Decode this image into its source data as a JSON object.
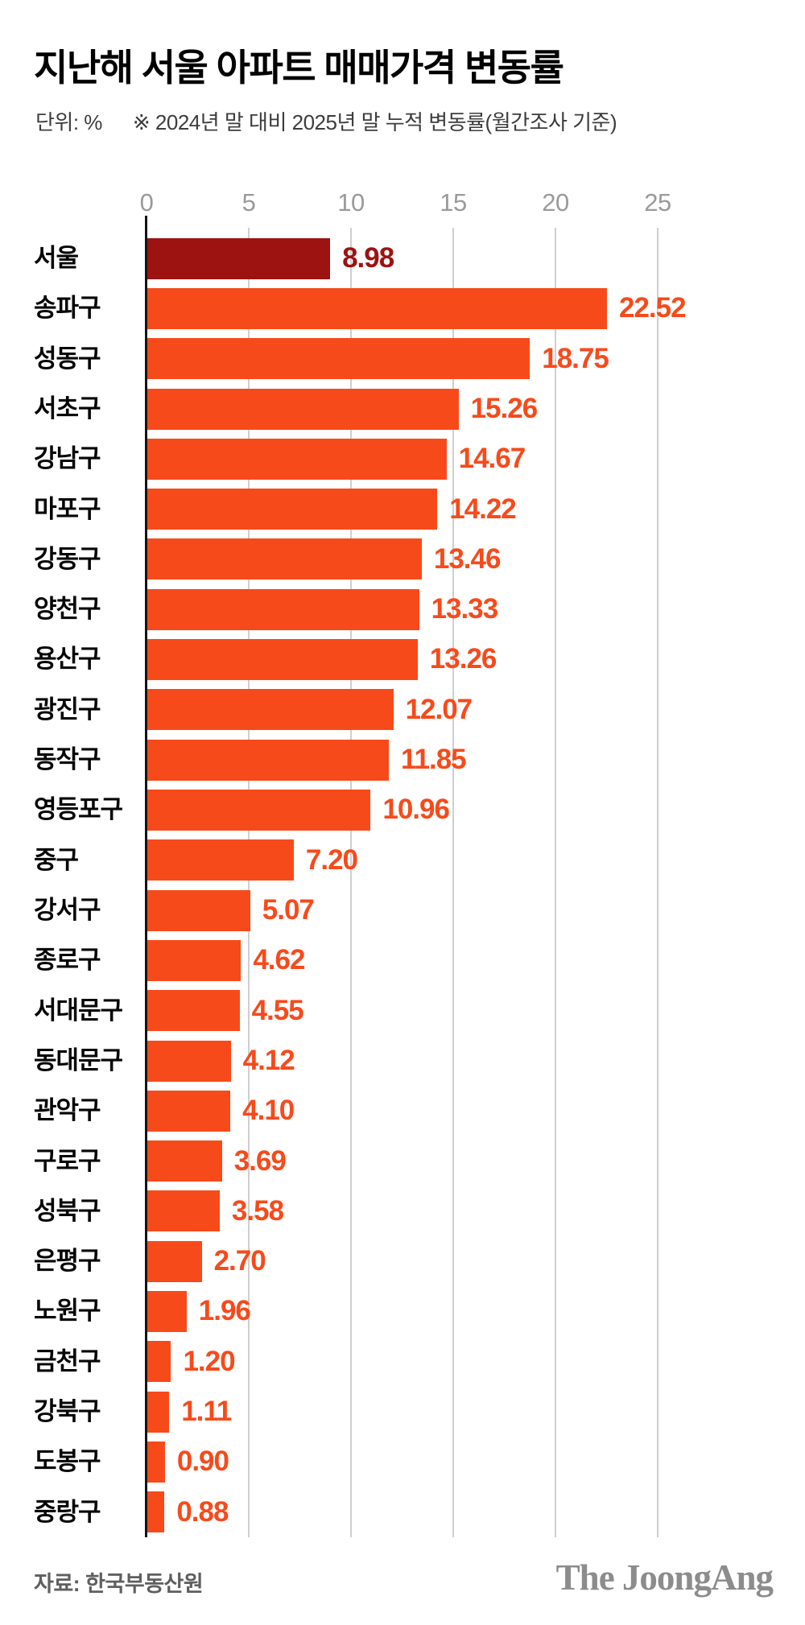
{
  "title": "지난해 서울 아파트 매매가격 변동률",
  "subtitle": {
    "unit_label": "단위: %",
    "note": "※ 2024년 말 대비 2025년 말 누적 변동률(월간조사 기준)"
  },
  "footer": {
    "source": "자료: 한국부동산원",
    "logo": "The JoongAng"
  },
  "colors": {
    "seoul_bar": "#9c1311",
    "seoul_value": "#9c1311",
    "district_bar": "#f74a1b",
    "district_value": "#f74a1b",
    "axis_label": "#9a9a9a",
    "gridline": "#cfcfcf",
    "axis_line": "#141414"
  },
  "chart_data": {
    "type": "bar",
    "orientation": "horizontal",
    "title": "지난해 서울 아파트 매매가격 변동률",
    "unit": "%",
    "xlabel": "",
    "ylabel": "",
    "xlim": [
      0,
      25
    ],
    "x_ticks": [
      0,
      5,
      10,
      15,
      20,
      25
    ],
    "grid": true,
    "highlight_category": "서울",
    "categories": [
      "서울",
      "송파구",
      "성동구",
      "서초구",
      "강남구",
      "마포구",
      "강동구",
      "양천구",
      "용산구",
      "광진구",
      "동작구",
      "영등포구",
      "중구",
      "강서구",
      "종로구",
      "서대문구",
      "동대문구",
      "관악구",
      "구로구",
      "성북구",
      "은평구",
      "노원구",
      "금천구",
      "강북구",
      "도봉구",
      "중랑구"
    ],
    "values": [
      8.98,
      22.52,
      18.75,
      15.26,
      14.67,
      14.22,
      13.46,
      13.33,
      13.26,
      12.07,
      11.85,
      10.96,
      7.2,
      5.07,
      4.62,
      4.55,
      4.12,
      4.1,
      3.69,
      3.58,
      2.7,
      1.96,
      1.2,
      1.11,
      0.9,
      0.88
    ]
  }
}
